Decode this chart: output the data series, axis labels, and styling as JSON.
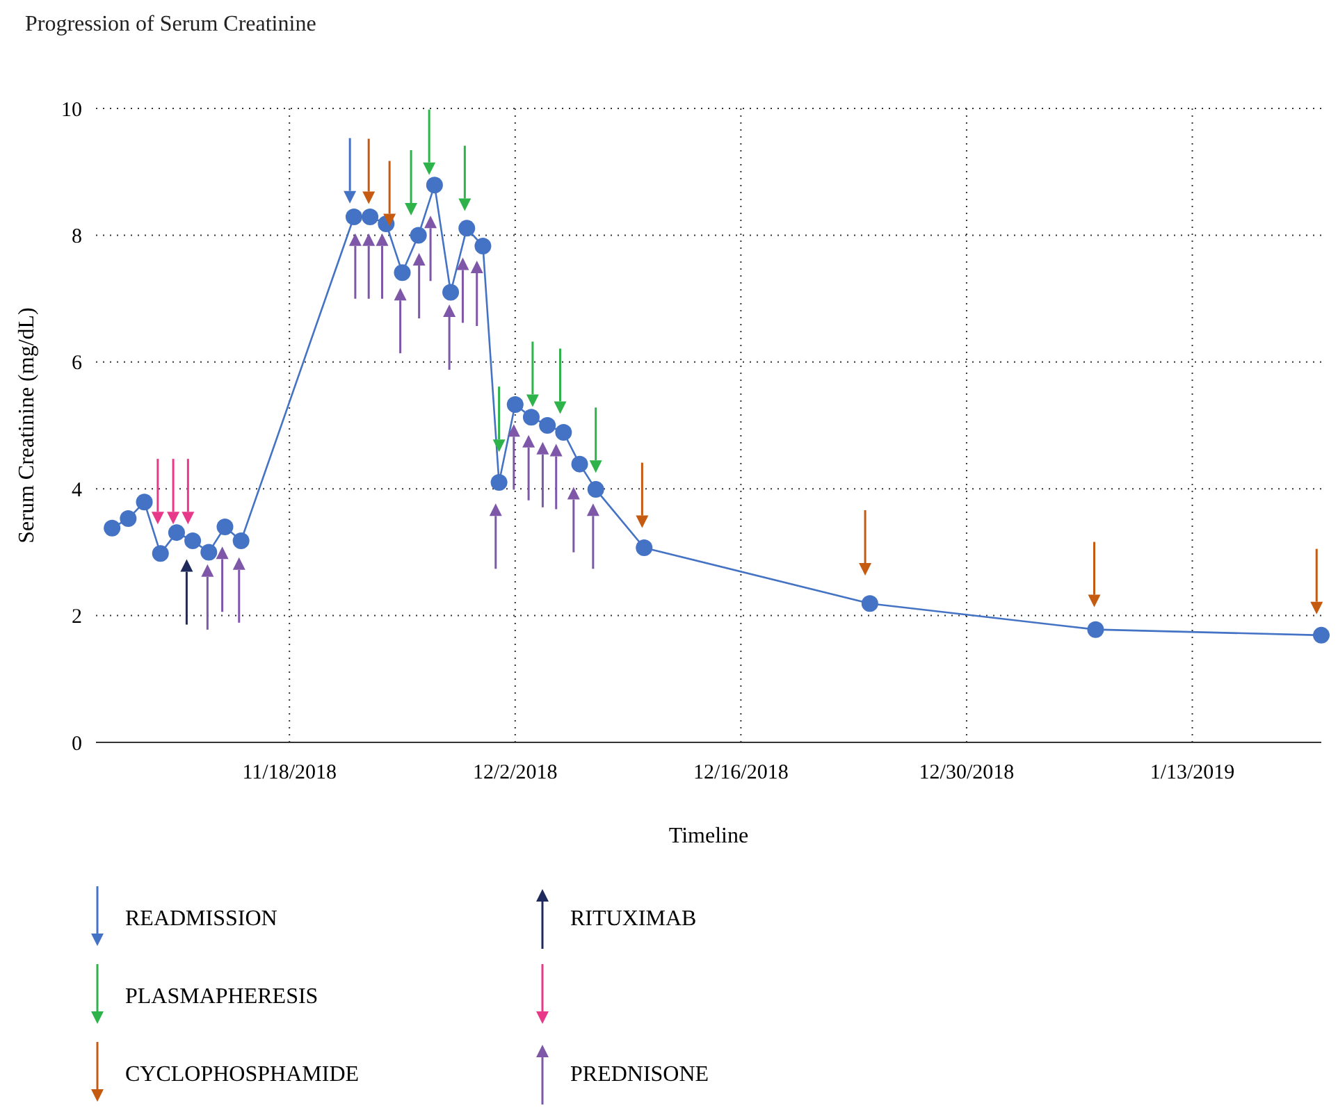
{
  "chart_data": {
    "type": "line",
    "title": "Progression of Serum Creatinine",
    "xlabel": "Timeline",
    "ylabel": "Serum Creatinine (mg/dL)",
    "xlim": [
      "2018-11-06",
      "2019-01-21"
    ],
    "ylim": [
      0,
      10
    ],
    "yticks": [
      0,
      2,
      4,
      6,
      8,
      10
    ],
    "xticks": [
      {
        "value": "2018-11-18",
        "label": "11/18/2018"
      },
      {
        "value": "2018-12-02",
        "label": "12/2/2018"
      },
      {
        "value": "2018-12-16",
        "label": "12/16/2018"
      },
      {
        "value": "2018-12-30",
        "label": "12/30/2018"
      },
      {
        "value": "2019-01-13",
        "label": "1/13/2019"
      }
    ],
    "grid": true,
    "legend": "bottom",
    "marker": "circle",
    "series": [
      {
        "color": "#4472c4",
        "x": [
          "2018-11-07",
          "2018-11-08",
          "2018-11-09",
          "2018-11-10",
          "2018-11-11",
          "2018-11-12",
          "2018-11-13",
          "2018-11-14",
          "2018-11-15",
          "2018-11-22",
          "2018-11-23",
          "2018-11-24",
          "2018-11-25",
          "2018-11-26",
          "2018-11-27",
          "2018-11-28",
          "2018-11-29",
          "2018-11-30",
          "2018-12-01",
          "2018-12-02",
          "2018-12-03",
          "2018-12-04",
          "2018-12-05",
          "2018-12-06",
          "2018-12-07",
          "2018-12-10",
          "2018-12-24",
          "2019-01-07",
          "2019-01-21"
        ],
        "values": [
          3.38,
          3.53,
          3.79,
          2.98,
          3.31,
          3.18,
          3.0,
          3.4,
          3.18,
          8.29,
          8.29,
          8.18,
          7.41,
          8.0,
          8.79,
          7.1,
          8.11,
          7.83,
          4.1,
          5.33,
          5.13,
          5.0,
          4.89,
          4.39,
          3.99,
          3.07,
          2.19,
          1.78,
          1.69
        ]
      },
      {
        "type": "scatter",
        "name": "READMISSION",
        "color": "#4472c4",
        "marker": "triangle",
        "x": [
          "2018-11-21T18:00"
        ],
        "values": [
          8.6
        ]
      },
      {
        "type": "scatter",
        "name": "PLASMAPHERESIS",
        "color": "#2eb34a",
        "marker": "triangle",
        "x": [
          "2018-11-25T13:00",
          "2018-11-26T16:00",
          "2018-11-28T21:00",
          "2018-12-01",
          "2018-12-03T02:00",
          "2018-12-04T19:00",
          "2018-12-07"
        ],
        "values": [
          8.41,
          9.05,
          8.48,
          4.68,
          5.39,
          5.28,
          4.35
        ]
      },
      {
        "type": "scatter",
        "name": "CYCLOPHOSPHAMIDE",
        "color": "#c55a11",
        "marker": "triangle",
        "x": [
          "2018-11-22T22:00",
          "2018-11-24T05:00",
          "2018-12-09T21:00",
          "2018-12-23T17:00",
          "2019-01-06T22:00",
          "2019-01-20T17:00"
        ],
        "values": [
          8.59,
          8.24,
          3.48,
          2.73,
          2.23,
          2.12
        ]
      },
      {
        "type": "scatter",
        "name": "RITUXIMAB",
        "color": "#1f2a5c",
        "marker": "triangle",
        "x": [
          "2018-11-11T15:00"
        ],
        "values": [
          2.79
        ]
      },
      {
        "type": "scatter",
        "color": "#e8388a",
        "marker": "triangle",
        "x": [
          "2018-11-09T20:00",
          "2018-11-10T19:00",
          "2018-11-11T17:00"
        ],
        "values": [
          3.54,
          3.54,
          3.54
        ]
      },
      {
        "type": "scatter",
        "name": "PREDNISONE",
        "color": "#7e57a8",
        "marker": "triangle",
        "x": [
          "2018-11-12T22:00",
          "2018-11-13T20:00",
          "2018-11-14T21:00",
          "2018-11-22T02:00",
          "2018-11-22T22:00",
          "2018-11-23T18:00",
          "2018-11-24T21:00",
          "2018-11-26T01:00",
          "2018-11-26T18:00",
          "2018-11-27T22:00",
          "2018-11-28T18:00",
          "2018-11-29T15:00",
          "2018-11-30T19:00",
          "2018-12-01T22:00",
          "2018-12-02T20:00",
          "2018-12-03T17:00",
          "2018-12-04T13:00",
          "2018-12-05T15:00",
          "2018-12-06T20:00"
        ],
        "values": [
          2.71,
          2.99,
          2.82,
          7.93,
          7.93,
          7.93,
          7.07,
          7.62,
          8.21,
          6.81,
          7.55,
          7.5,
          3.67,
          4.92,
          4.75,
          4.64,
          4.61,
          3.93,
          3.67
        ]
      }
    ]
  }
}
